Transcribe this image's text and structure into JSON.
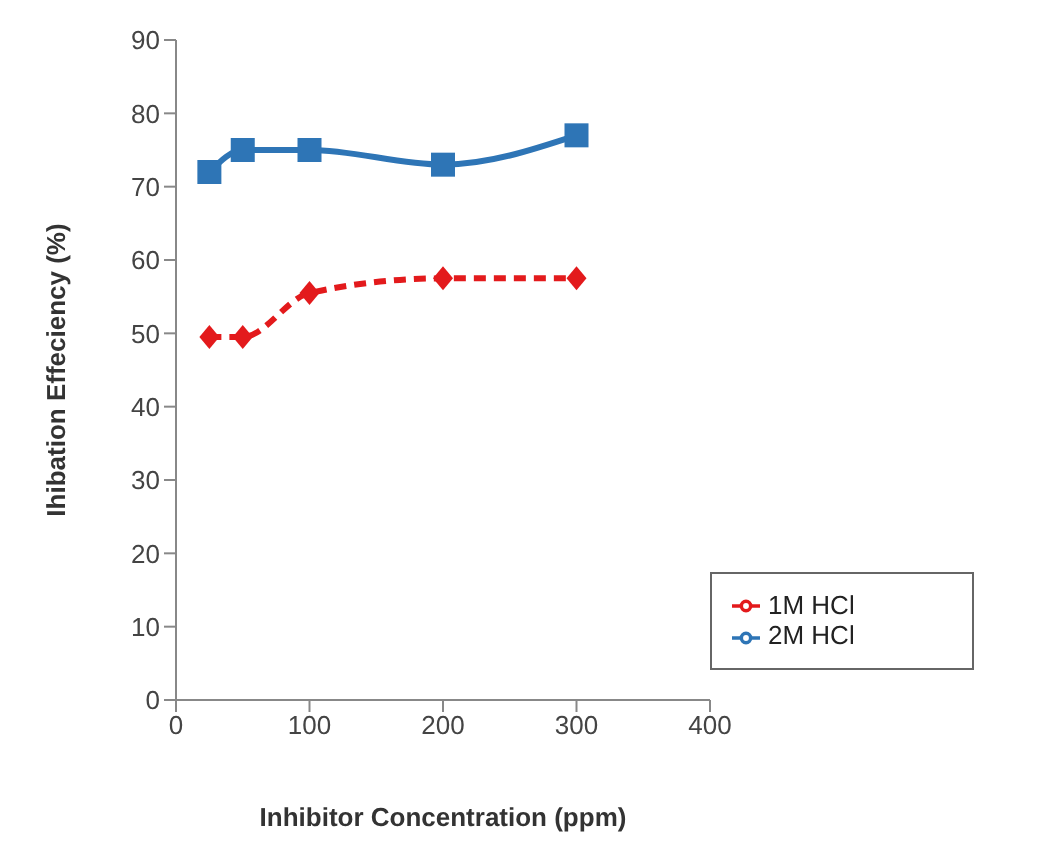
{
  "chart_data": {
    "type": "line",
    "xlabel": "Inhibitor Concentration (ppm)",
    "ylabel": "Ihibation Effeciency (%)",
    "x": [
      25,
      50,
      100,
      200,
      300
    ],
    "series": [
      {
        "name": "1M HCl",
        "color": "#e31a1c",
        "values": [
          49.5,
          49.5,
          55.5,
          57.5,
          57.5
        ],
        "marker": "diamond",
        "line_style": "dashed"
      },
      {
        "name": "2M HCl",
        "color": "#2e75b6",
        "values": [
          72,
          75,
          75,
          73,
          77
        ],
        "marker": "square",
        "line_style": "solid"
      }
    ],
    "xlim": [
      0,
      400
    ],
    "xticks": [
      0,
      100,
      200,
      300,
      400
    ],
    "ylim": [
      0,
      90
    ],
    "yticks": [
      0,
      10,
      20,
      30,
      40,
      50,
      60,
      70,
      80,
      90
    ],
    "grid": false,
    "legend": "bottom right"
  }
}
